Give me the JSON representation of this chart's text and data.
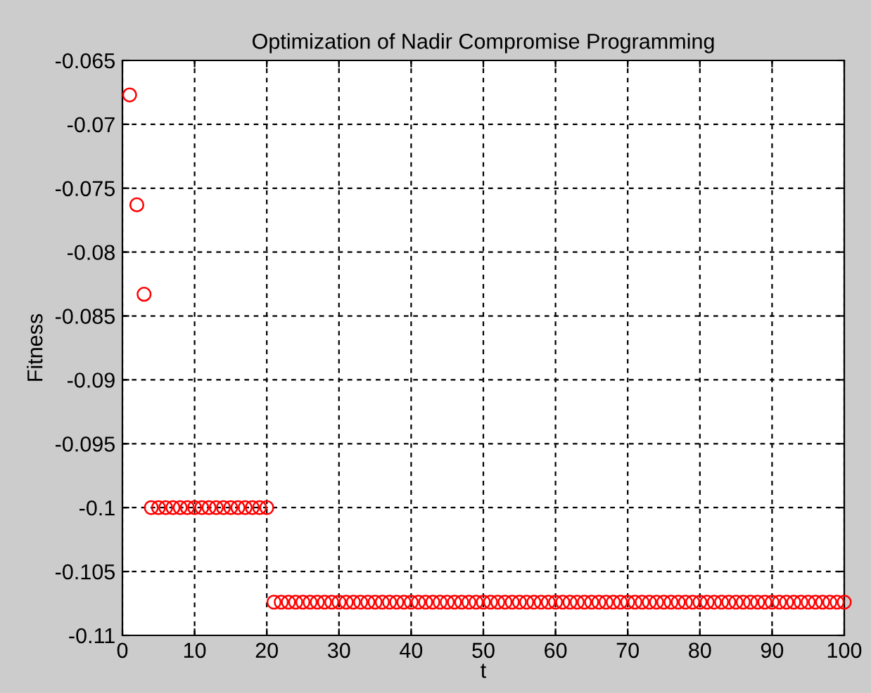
{
  "chart_data": {
    "type": "scatter",
    "title": "Optimization of Nadir Compromise Programming",
    "xlabel": "t",
    "ylabel": "Fitness",
    "x": [
      1,
      2,
      3,
      4,
      5,
      6,
      7,
      8,
      9,
      10,
      11,
      12,
      13,
      14,
      15,
      16,
      17,
      18,
      19,
      20,
      21,
      22,
      23,
      24,
      25,
      26,
      27,
      28,
      29,
      30,
      31,
      32,
      33,
      34,
      35,
      36,
      37,
      38,
      39,
      40,
      41,
      42,
      43,
      44,
      45,
      46,
      47,
      48,
      49,
      50,
      51,
      52,
      53,
      54,
      55,
      56,
      57,
      58,
      59,
      60,
      61,
      62,
      63,
      64,
      65,
      66,
      67,
      68,
      69,
      70,
      71,
      72,
      73,
      74,
      75,
      76,
      77,
      78,
      79,
      80,
      81,
      82,
      83,
      84,
      85,
      86,
      87,
      88,
      89,
      90,
      91,
      92,
      93,
      94,
      95,
      96,
      97,
      98,
      99,
      100
    ],
    "series": [
      {
        "color": "#ff0000",
        "values": [
          -0.0677,
          -0.0763,
          -0.0833,
          -0.1,
          -0.1,
          -0.1,
          -0.1,
          -0.1,
          -0.1,
          -0.1,
          -0.1,
          -0.1,
          -0.1,
          -0.1,
          -0.1,
          -0.1,
          -0.1,
          -0.1,
          -0.1,
          -0.1,
          -0.1074,
          -0.1074,
          -0.1074,
          -0.1074,
          -0.1074,
          -0.1074,
          -0.1074,
          -0.1074,
          -0.1074,
          -0.1074,
          -0.1074,
          -0.1074,
          -0.1074,
          -0.1074,
          -0.1074,
          -0.1074,
          -0.1074,
          -0.1074,
          -0.1074,
          -0.1074,
          -0.1074,
          -0.1074,
          -0.1074,
          -0.1074,
          -0.1074,
          -0.1074,
          -0.1074,
          -0.1074,
          -0.1074,
          -0.1074,
          -0.1074,
          -0.1074,
          -0.1074,
          -0.1074,
          -0.1074,
          -0.1074,
          -0.1074,
          -0.1074,
          -0.1074,
          -0.1074,
          -0.1074,
          -0.1074,
          -0.1074,
          -0.1074,
          -0.1074,
          -0.1074,
          -0.1074,
          -0.1074,
          -0.1074,
          -0.1074,
          -0.1074,
          -0.1074,
          -0.1074,
          -0.1074,
          -0.1074,
          -0.1074,
          -0.1074,
          -0.1074,
          -0.1074,
          -0.1074,
          -0.1074,
          -0.1074,
          -0.1074,
          -0.1074,
          -0.1074,
          -0.1074,
          -0.1074,
          -0.1074,
          -0.1074,
          -0.1074,
          -0.1074,
          -0.1074,
          -0.1074,
          -0.1074,
          -0.1074,
          -0.1074,
          -0.1074,
          -0.1074,
          -0.1074,
          -0.1074
        ]
      }
    ],
    "xlim": [
      0,
      100
    ],
    "xticks": [
      0,
      10,
      20,
      30,
      40,
      50,
      60,
      70,
      80,
      90,
      100
    ],
    "ylim": [
      -0.11,
      -0.065
    ],
    "yticks": [
      -0.11,
      -0.105,
      -0.1,
      -0.095,
      -0.09,
      -0.085,
      -0.08,
      -0.075,
      -0.07,
      -0.065
    ],
    "grid": true,
    "marker": "circle",
    "legend": false
  }
}
